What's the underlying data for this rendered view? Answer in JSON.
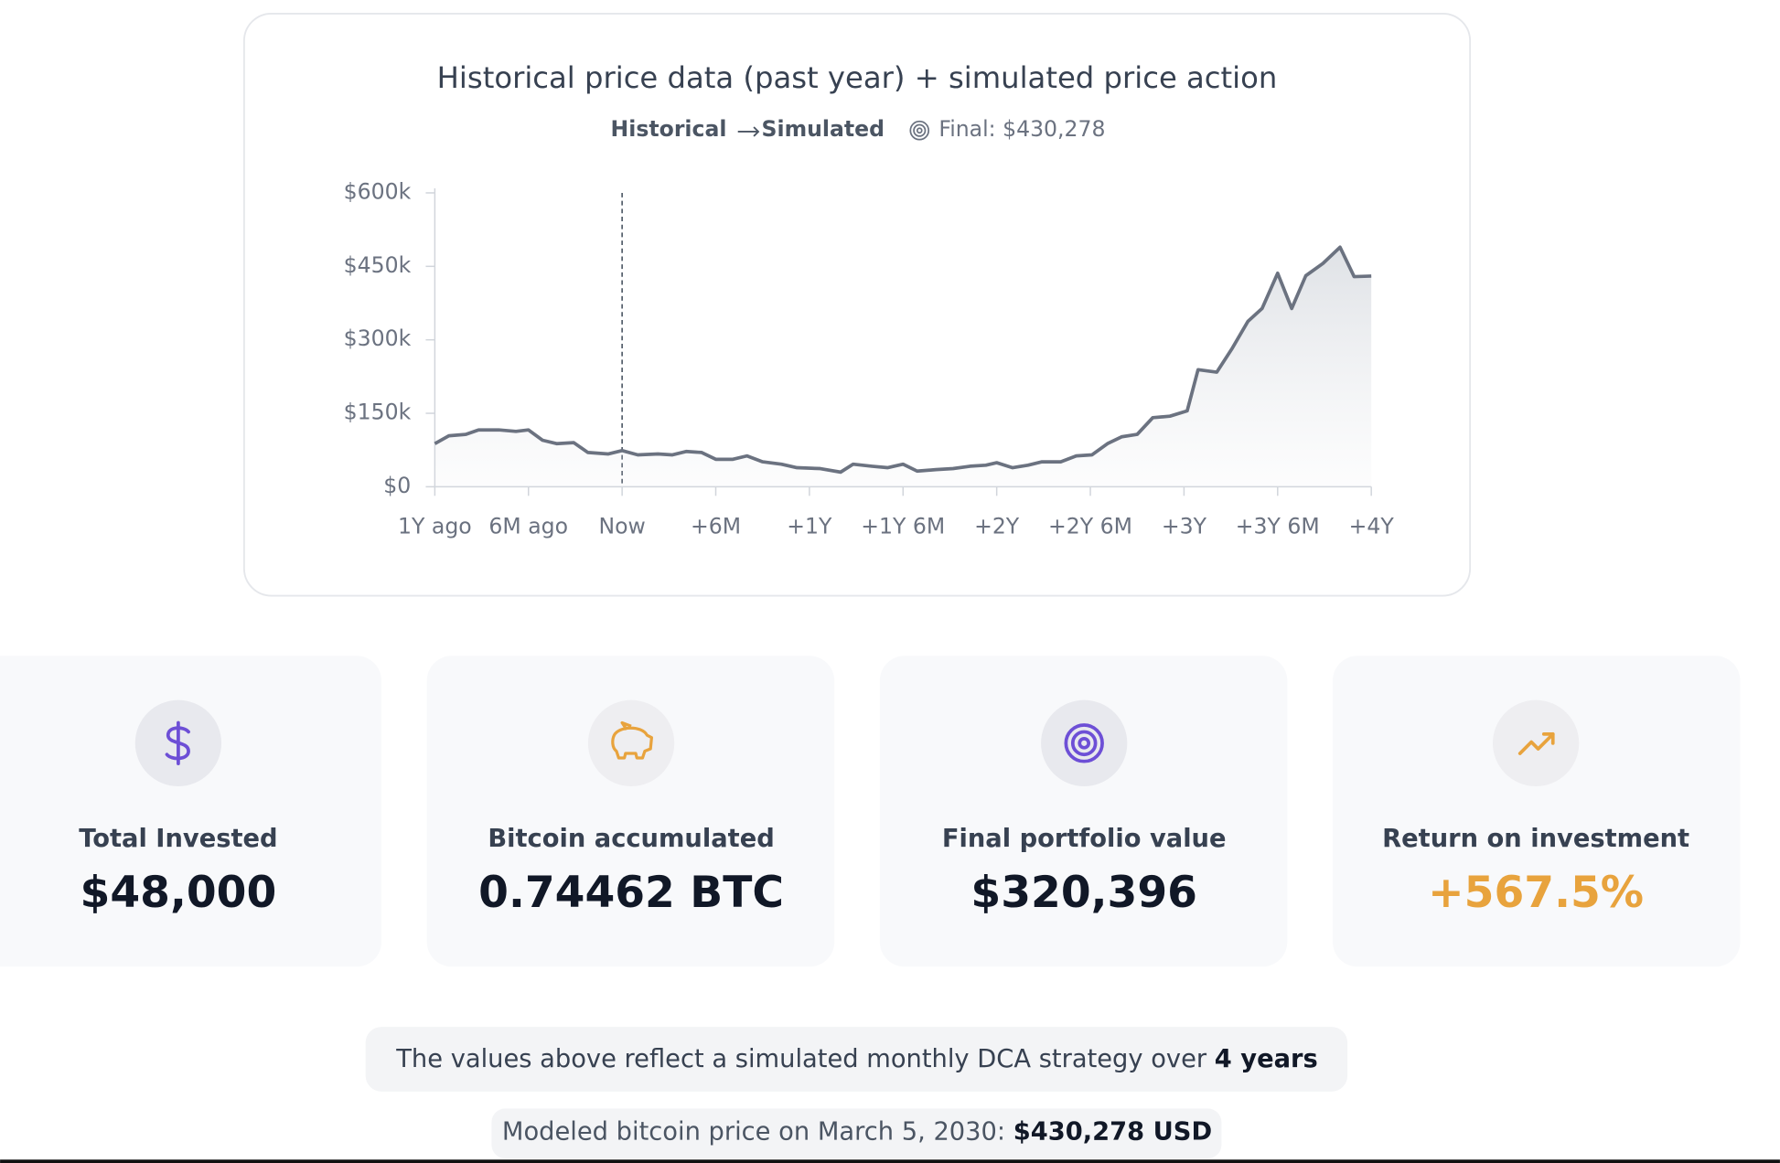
{
  "chart_data": {
    "type": "line",
    "title": "Historical price data (past year) + simulated price action",
    "legend_text": [
      "Historical",
      "Simulated"
    ],
    "final_label": "Final: $430,278",
    "x": [
      -12,
      -11.1,
      -10,
      -9.2,
      -7.9,
      -6.8,
      -6,
      -5.1,
      -4.2,
      -3.1,
      -2.2,
      -0.9,
      0,
      1,
      2.3,
      3.2,
      4.1,
      5.1,
      6,
      7.1,
      8,
      9,
      10.2,
      11.2,
      12.7,
      14,
      14.8,
      16,
      17,
      18,
      18.9,
      20.1,
      21.2,
      22.3,
      23.3,
      24,
      25,
      26,
      26.9,
      28.1,
      29.1,
      30.1,
      31.1,
      32,
      33,
      34,
      35.1,
      36.2,
      36.9,
      38.1,
      39.1,
      40.1,
      41,
      42,
      42.9,
      43.8,
      44.9,
      46,
      46.9,
      48
    ],
    "values": [
      88000,
      104000,
      107000,
      116000,
      116000,
      113000,
      116000,
      95000,
      88000,
      90000,
      70000,
      67000,
      74000,
      65000,
      67000,
      65000,
      72000,
      70000,
      56000,
      56000,
      63000,
      51000,
      46000,
      39000,
      37000,
      30000,
      46000,
      42000,
      39000,
      46000,
      32000,
      35000,
      37000,
      42000,
      44000,
      49000,
      39000,
      44000,
      51000,
      51000,
      63000,
      65000,
      88000,
      102000,
      107000,
      141000,
      144000,
      155000,
      239000,
      234000,
      283000,
      338000,
      364000,
      436000,
      364000,
      431000,
      456000,
      489000,
      429000,
      430278
    ],
    "color": "#6b7280",
    "xlim": [
      -12,
      48
    ],
    "xticks": [
      {
        "value": -12,
        "label": "1Y ago"
      },
      {
        "value": -6,
        "label": "6M ago"
      },
      {
        "value": 0,
        "label": "Now"
      },
      {
        "value": 6,
        "label": "+6M"
      },
      {
        "value": 12,
        "label": "+1Y"
      },
      {
        "value": 18,
        "label": "+1Y 6M"
      },
      {
        "value": 24,
        "label": "+2Y"
      },
      {
        "value": 30,
        "label": "+2Y 6M"
      },
      {
        "value": 36,
        "label": "+3Y"
      },
      {
        "value": 42,
        "label": "+3Y 6M"
      },
      {
        "value": 48,
        "label": "+4Y"
      }
    ],
    "ylim": [
      0,
      600000
    ],
    "yticks": [
      {
        "value": 0,
        "label": "$0"
      },
      {
        "value": 150000,
        "label": "$150k"
      },
      {
        "value": 300000,
        "label": "$300k"
      },
      {
        "value": 450000,
        "label": "$450k"
      },
      {
        "value": 600000,
        "label": "$600k"
      }
    ]
  },
  "stats": [
    {
      "label": "Total Invested",
      "value": "$48,000"
    },
    {
      "label": "Bitcoin accumulated",
      "value": "0.74462 BTC"
    },
    {
      "label": "Final portfolio value",
      "value": "$320,396"
    },
    {
      "label": "Return on investment",
      "value": "+567.5%"
    }
  ],
  "notes": [
    [
      "The values above reflect a simulated monthly DCA strategy over",
      "4 years"
    ],
    [
      "Modeled bitcoin price on March 5, 2030:",
      "$430,278 USD"
    ]
  ]
}
